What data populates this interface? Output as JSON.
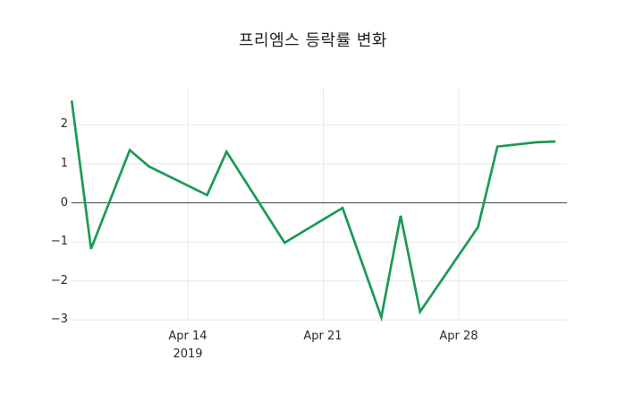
{
  "title": "프리엠스 등락률 변화",
  "colors": {
    "background": "#ffffff",
    "line": "#1a9a55",
    "grid": "#e8e8e8",
    "zero_line": "#444444",
    "tick_text": "#2a2a2a",
    "title_text": "#1f1f1f"
  },
  "chart_data": {
    "type": "line",
    "title": "프리엠스 등락률 변화",
    "xlabel": "",
    "ylabel": "",
    "x": [
      "2019-04-08",
      "2019-04-09",
      "2019-04-11",
      "2019-04-12",
      "2019-04-15",
      "2019-04-16",
      "2019-04-19",
      "2019-04-22",
      "2019-04-24",
      "2019-04-25",
      "2019-04-26",
      "2019-04-29",
      "2019-04-30",
      "2019-05-02",
      "2019-05-03"
    ],
    "values": [
      2.62,
      -1.18,
      1.35,
      0.93,
      0.2,
      1.31,
      -1.02,
      -0.13,
      -2.93,
      -0.33,
      -2.79,
      -0.62,
      1.44,
      1.55,
      1.57
    ],
    "series_name": "등락률",
    "xticks": [
      {
        "date": "2019-04-14",
        "label": "Apr 14",
        "year": "2019"
      },
      {
        "date": "2019-04-21",
        "label": "Apr 21"
      },
      {
        "date": "2019-04-28",
        "label": "Apr 28"
      }
    ],
    "ytick_values": [
      2,
      1,
      0,
      -1,
      -2,
      -3
    ],
    "ytick_labels": [
      "2",
      "1",
      "0",
      "−1",
      "−2",
      "−3"
    ],
    "xlim": [
      "2019-04-08",
      "2019-05-03"
    ],
    "ylim": [
      -3.05,
      2.95
    ],
    "grid": true,
    "zero_line": true,
    "legend": false
  }
}
